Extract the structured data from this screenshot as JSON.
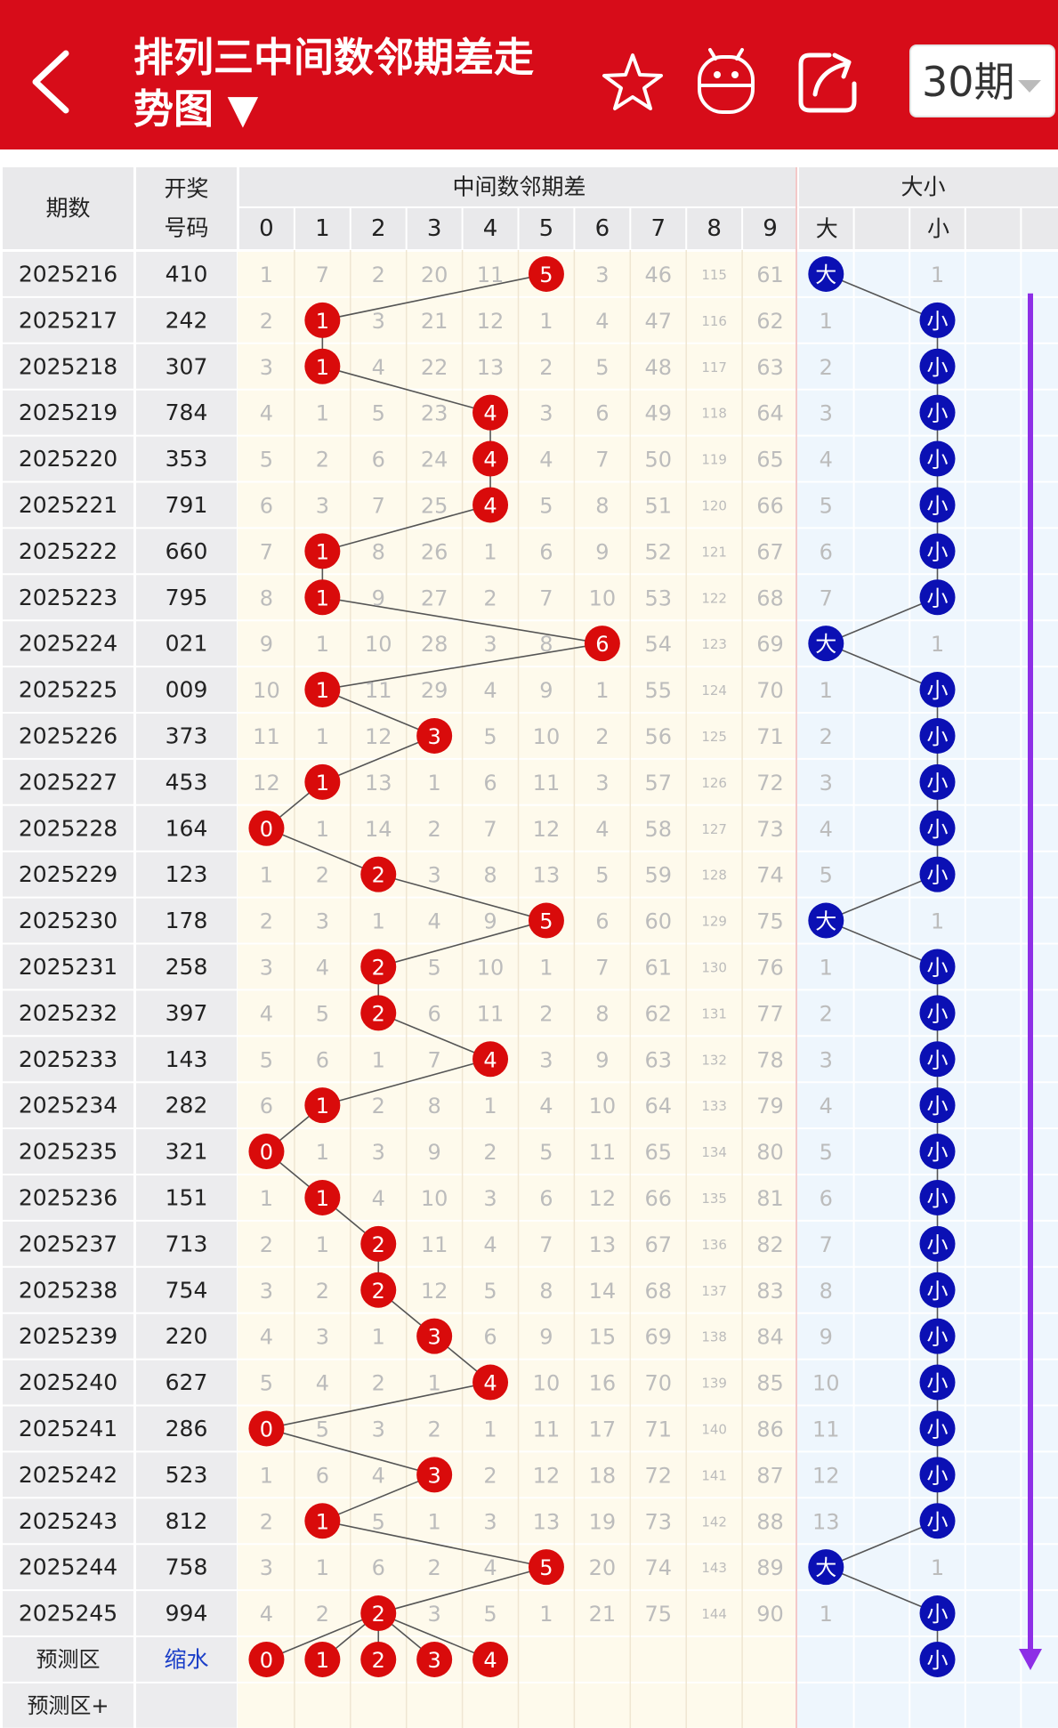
{
  "header": {
    "title": "排列三中间数邻期差走势图 ▼",
    "period_selector": "30期"
  },
  "table": {
    "col_period": "期数",
    "col_draw_1": "开奖",
    "col_draw_2": "号码",
    "group_mid": "中间数邻期差",
    "group_size": "大小",
    "mid_digits": [
      "0",
      "1",
      "2",
      "3",
      "4",
      "5",
      "6",
      "7",
      "8",
      "9"
    ],
    "size_big": "大",
    "size_small": "小",
    "rows": [
      {
        "p": "2025216",
        "n": "410",
        "c": [
          1,
          7,
          2,
          20,
          11,
          "H",
          3,
          46,
          115,
          61
        ],
        "h": 5,
        "s": "大",
        "sc": 1
      },
      {
        "p": "2025217",
        "n": "242",
        "c": [
          2,
          "H",
          3,
          21,
          12,
          1,
          4,
          47,
          116,
          62
        ],
        "h": 1,
        "s": "小",
        "sc": 1
      },
      {
        "p": "2025218",
        "n": "307",
        "c": [
          3,
          "H",
          4,
          22,
          13,
          2,
          5,
          48,
          117,
          63
        ],
        "h": 1,
        "s": "小",
        "sc": 2
      },
      {
        "p": "2025219",
        "n": "784",
        "c": [
          4,
          1,
          5,
          23,
          "H",
          3,
          6,
          49,
          118,
          64
        ],
        "h": 4,
        "s": "小",
        "sc": 3
      },
      {
        "p": "2025220",
        "n": "353",
        "c": [
          5,
          2,
          6,
          24,
          "H",
          4,
          7,
          50,
          119,
          65
        ],
        "h": 4,
        "s": "小",
        "sc": 4
      },
      {
        "p": "2025221",
        "n": "791",
        "c": [
          6,
          3,
          7,
          25,
          "H",
          5,
          8,
          51,
          120,
          66
        ],
        "h": 4,
        "s": "小",
        "sc": 5
      },
      {
        "p": "2025222",
        "n": "660",
        "c": [
          7,
          "H",
          8,
          26,
          1,
          6,
          9,
          52,
          121,
          67
        ],
        "h": 1,
        "s": "小",
        "sc": 6
      },
      {
        "p": "2025223",
        "n": "795",
        "c": [
          8,
          "H",
          9,
          27,
          2,
          7,
          10,
          53,
          122,
          68
        ],
        "h": 1,
        "s": "小",
        "sc": 7
      },
      {
        "p": "2025224",
        "n": "021",
        "c": [
          9,
          1,
          10,
          28,
          3,
          8,
          "H",
          54,
          123,
          69
        ],
        "h": 6,
        "s": "大",
        "sc": 1
      },
      {
        "p": "2025225",
        "n": "009",
        "c": [
          10,
          "H",
          11,
          29,
          4,
          9,
          1,
          55,
          124,
          70
        ],
        "h": 1,
        "s": "小",
        "sc": 1
      },
      {
        "p": "2025226",
        "n": "373",
        "c": [
          11,
          1,
          12,
          "H",
          5,
          10,
          2,
          56,
          125,
          71
        ],
        "h": 3,
        "s": "小",
        "sc": 2
      },
      {
        "p": "2025227",
        "n": "453",
        "c": [
          12,
          "H",
          13,
          1,
          6,
          11,
          3,
          57,
          126,
          72
        ],
        "h": 1,
        "s": "小",
        "sc": 3
      },
      {
        "p": "2025228",
        "n": "164",
        "c": [
          "H",
          1,
          14,
          2,
          7,
          12,
          4,
          58,
          127,
          73
        ],
        "h": 0,
        "s": "小",
        "sc": 4
      },
      {
        "p": "2025229",
        "n": "123",
        "c": [
          1,
          2,
          "H",
          3,
          8,
          13,
          5,
          59,
          128,
          74
        ],
        "h": 2,
        "s": "小",
        "sc": 5
      },
      {
        "p": "2025230",
        "n": "178",
        "c": [
          2,
          3,
          1,
          4,
          9,
          "H",
          6,
          60,
          129,
          75
        ],
        "h": 5,
        "s": "大",
        "sc": 1
      },
      {
        "p": "2025231",
        "n": "258",
        "c": [
          3,
          4,
          "H",
          5,
          10,
          1,
          7,
          61,
          130,
          76
        ],
        "h": 2,
        "s": "小",
        "sc": 1
      },
      {
        "p": "2025232",
        "n": "397",
        "c": [
          4,
          5,
          "H",
          6,
          11,
          2,
          8,
          62,
          131,
          77
        ],
        "h": 2,
        "s": "小",
        "sc": 2
      },
      {
        "p": "2025233",
        "n": "143",
        "c": [
          5,
          6,
          1,
          7,
          "H",
          3,
          9,
          63,
          132,
          78
        ],
        "h": 4,
        "s": "小",
        "sc": 3
      },
      {
        "p": "2025234",
        "n": "282",
        "c": [
          6,
          "H",
          2,
          8,
          1,
          4,
          10,
          64,
          133,
          79
        ],
        "h": 1,
        "s": "小",
        "sc": 4
      },
      {
        "p": "2025235",
        "n": "321",
        "c": [
          "H",
          1,
          3,
          9,
          2,
          5,
          11,
          65,
          134,
          80
        ],
        "h": 0,
        "s": "小",
        "sc": 5
      },
      {
        "p": "2025236",
        "n": "151",
        "c": [
          1,
          "H",
          4,
          10,
          3,
          6,
          12,
          66,
          135,
          81
        ],
        "h": 1,
        "s": "小",
        "sc": 6
      },
      {
        "p": "2025237",
        "n": "713",
        "c": [
          2,
          1,
          "H",
          11,
          4,
          7,
          13,
          67,
          136,
          82
        ],
        "h": 2,
        "s": "小",
        "sc": 7
      },
      {
        "p": "2025238",
        "n": "754",
        "c": [
          3,
          2,
          "H",
          12,
          5,
          8,
          14,
          68,
          137,
          83
        ],
        "h": 2,
        "s": "小",
        "sc": 8
      },
      {
        "p": "2025239",
        "n": "220",
        "c": [
          4,
          3,
          1,
          "H",
          6,
          9,
          15,
          69,
          138,
          84
        ],
        "h": 3,
        "s": "小",
        "sc": 9
      },
      {
        "p": "2025240",
        "n": "627",
        "c": [
          5,
          4,
          2,
          1,
          "H",
          10,
          16,
          70,
          139,
          85
        ],
        "h": 4,
        "s": "小",
        "sc": 10
      },
      {
        "p": "2025241",
        "n": "286",
        "c": [
          "H",
          5,
          3,
          2,
          1,
          11,
          17,
          71,
          140,
          86
        ],
        "h": 0,
        "s": "小",
        "sc": 11
      },
      {
        "p": "2025242",
        "n": "523",
        "c": [
          1,
          6,
          4,
          "H",
          2,
          12,
          18,
          72,
          141,
          87
        ],
        "h": 3,
        "s": "小",
        "sc": 12
      },
      {
        "p": "2025243",
        "n": "812",
        "c": [
          2,
          "H",
          5,
          1,
          3,
          13,
          19,
          73,
          142,
          88
        ],
        "h": 1,
        "s": "小",
        "sc": 13
      },
      {
        "p": "2025244",
        "n": "758",
        "c": [
          3,
          1,
          6,
          2,
          4,
          "H",
          20,
          74,
          143,
          89
        ],
        "h": 5,
        "s": "大",
        "sc": 1
      },
      {
        "p": "2025245",
        "n": "994",
        "c": [
          4,
          2,
          "H",
          3,
          5,
          1,
          21,
          75,
          144,
          90
        ],
        "h": 2,
        "s": "小",
        "sc": 1
      }
    ],
    "predict_label": "预测区",
    "predict_link": "缩水",
    "predict_digits": [
      0,
      1,
      2,
      3,
      4
    ],
    "predict_size": "小",
    "predict_plus": "预测区+"
  },
  "colors": {
    "brand_red": "#d70c19",
    "ball_red": "#d90b0b",
    "ball_blue": "#0b10b4",
    "trend_purple": "#8e2fe6"
  }
}
